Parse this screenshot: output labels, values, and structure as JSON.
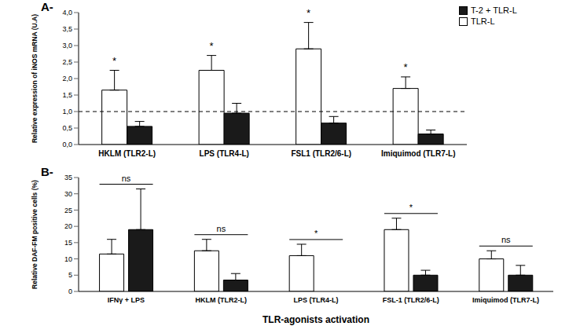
{
  "chart_data": [
    {
      "type": "bar",
      "title": "A-",
      "y_label": "Relative expression of iNOS mRNA (U.A)",
      "categories": [
        "HKLM (TLR2-L)",
        "LPS (TLR4-L)",
        "FSL1 (TLR2/6-L)",
        "Imiquimod (TLR7-L)"
      ],
      "series": [
        {
          "name": "TLR-L",
          "color": "#ffffff",
          "values": [
            1.65,
            2.25,
            2.9,
            1.7
          ],
          "errors": [
            0.6,
            0.45,
            0.8,
            0.35
          ]
        },
        {
          "name": "T-2 + TLR-L",
          "color": "#1a1a1a",
          "values": [
            0.55,
            0.95,
            0.65,
            0.32
          ],
          "errors": [
            0.15,
            0.3,
            0.2,
            0.12
          ]
        }
      ],
      "significance": [
        "*",
        "*",
        "*",
        "*"
      ],
      "reference_line": 1,
      "ylim": [
        0,
        4
      ],
      "yticks": [
        {
          "value": 0,
          "label": "0,0"
        },
        {
          "value": 0.5,
          "label": "0,5"
        },
        {
          "value": 1,
          "label": "1,0"
        },
        {
          "value": 1.5,
          "label": "1,5"
        },
        {
          "value": 2,
          "label": "2,0"
        },
        {
          "value": 2.5,
          "label": "2,5"
        },
        {
          "value": 3,
          "label": "3,0"
        },
        {
          "value": 3.5,
          "label": "3,5"
        },
        {
          "value": 4,
          "label": "4,0"
        }
      ],
      "legend": "upper right"
    },
    {
      "type": "bar",
      "title": "B-",
      "y_label": "Relative DAF-FM positive cells (%)",
      "x_label": "TLR-agonists activation",
      "categories": [
        "IFNγ + LPS",
        "HKLM (TLR2-L)",
        "LPS (TLR4-L)",
        "FSL-1 (TLR2/6-L)",
        "Imiquimod (TLR7-L)"
      ],
      "series": [
        {
          "name": "TLR-L",
          "color": "#ffffff",
          "values": [
            11.5,
            12.5,
            11,
            19,
            10
          ],
          "errors": [
            4.5,
            3.5,
            3.5,
            3.5,
            2.5
          ]
        },
        {
          "name": "T-2 + TLR-L",
          "color": "#1a1a1a",
          "values": [
            19,
            3.5,
            0,
            5,
            5
          ],
          "errors": [
            12.5,
            2,
            0,
            1.5,
            3
          ]
        }
      ],
      "significance": [
        "ns",
        "ns",
        "*",
        "*",
        "ns"
      ],
      "ylim": [
        0,
        35
      ],
      "yticks": [
        0,
        5,
        10,
        15,
        20,
        25,
        30,
        35
      ]
    }
  ]
}
